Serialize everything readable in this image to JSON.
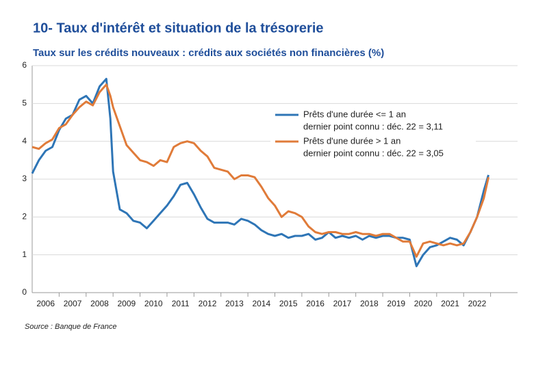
{
  "chart_data": {
    "type": "line",
    "title": "10- Taux d'intérêt et situation de la trésorerie",
    "subtitle": "Taux sur les crédits nouveaux : crédits aux sociétés non financières (%)",
    "source": "Source : Banque de France",
    "x": [
      2006.0,
      2006.25,
      2006.5,
      2006.75,
      2007.0,
      2007.25,
      2007.5,
      2007.75,
      2008.0,
      2008.25,
      2008.5,
      2008.75,
      2008.9,
      2009.0,
      2009.25,
      2009.5,
      2009.75,
      2010.0,
      2010.25,
      2010.5,
      2010.75,
      2011.0,
      2011.25,
      2011.5,
      2011.75,
      2012.0,
      2012.25,
      2012.5,
      2012.75,
      2013.0,
      2013.25,
      2013.5,
      2013.75,
      2014.0,
      2014.25,
      2014.5,
      2014.75,
      2015.0,
      2015.25,
      2015.5,
      2015.75,
      2016.0,
      2016.25,
      2016.5,
      2016.75,
      2017.0,
      2017.25,
      2017.5,
      2017.75,
      2018.0,
      2018.25,
      2018.5,
      2018.75,
      2019.0,
      2019.25,
      2019.5,
      2019.75,
      2020.0,
      2020.25,
      2020.5,
      2020.75,
      2021.0,
      2021.25,
      2021.5,
      2021.75,
      2022.0,
      2022.25,
      2022.5,
      2022.75,
      2022.92
    ],
    "series": [
      {
        "name": "Prêts d'une durée <= 1 an",
        "note": "dernier point connu : déc. 22 = 3,11",
        "color": "#2e75b6",
        "values": [
          3.15,
          3.5,
          3.75,
          3.85,
          4.3,
          4.6,
          4.7,
          5.1,
          5.2,
          5.0,
          5.45,
          5.65,
          4.6,
          3.2,
          2.2,
          2.1,
          1.9,
          1.85,
          1.7,
          1.9,
          2.1,
          2.3,
          2.55,
          2.85,
          2.9,
          2.6,
          2.25,
          1.95,
          1.85,
          1.85,
          1.85,
          1.8,
          1.95,
          1.9,
          1.8,
          1.65,
          1.55,
          1.5,
          1.55,
          1.45,
          1.5,
          1.5,
          1.55,
          1.4,
          1.45,
          1.6,
          1.45,
          1.5,
          1.45,
          1.5,
          1.4,
          1.5,
          1.45,
          1.5,
          1.5,
          1.45,
          1.45,
          1.4,
          0.7,
          1.0,
          1.2,
          1.25,
          1.35,
          1.45,
          1.4,
          1.25,
          1.6,
          2.0,
          2.7,
          3.11
        ]
      },
      {
        "name": "Prêts d'une durée > 1 an",
        "note": "dernier point connu : déc. 22 = 3,05",
        "color": "#e07b39",
        "values": [
          3.85,
          3.8,
          3.95,
          4.05,
          4.35,
          4.45,
          4.7,
          4.9,
          5.05,
          4.95,
          5.3,
          5.5,
          5.2,
          4.9,
          4.4,
          3.9,
          3.7,
          3.5,
          3.45,
          3.35,
          3.5,
          3.45,
          3.85,
          3.95,
          4.0,
          3.95,
          3.75,
          3.6,
          3.3,
          3.25,
          3.2,
          3.0,
          3.1,
          3.1,
          3.05,
          2.8,
          2.5,
          2.3,
          2.0,
          2.15,
          2.1,
          2.0,
          1.75,
          1.6,
          1.55,
          1.6,
          1.6,
          1.55,
          1.55,
          1.6,
          1.55,
          1.55,
          1.5,
          1.55,
          1.55,
          1.45,
          1.35,
          1.35,
          0.95,
          1.3,
          1.35,
          1.3,
          1.25,
          1.3,
          1.25,
          1.3,
          1.6,
          2.0,
          2.5,
          3.05
        ]
      }
    ],
    "xlim": [
      2006,
      2024
    ],
    "xticks": [
      {
        "value": 2006.5,
        "label": "2006"
      },
      {
        "value": 2007.5,
        "label": "2007"
      },
      {
        "value": 2008.5,
        "label": "2008"
      },
      {
        "value": 2009.5,
        "label": "2009"
      },
      {
        "value": 2010.5,
        "label": "2010"
      },
      {
        "value": 2011.5,
        "label": "2011"
      },
      {
        "value": 2012.5,
        "label": "2012"
      },
      {
        "value": 2013.5,
        "label": "2013"
      },
      {
        "value": 2014.5,
        "label": "2014"
      },
      {
        "value": 2015.5,
        "label": "2015"
      },
      {
        "value": 2016.5,
        "label": "2016"
      },
      {
        "value": 2017.5,
        "label": "2017"
      },
      {
        "value": 2018.5,
        "label": "2018"
      },
      {
        "value": 2019.5,
        "label": "2019"
      },
      {
        "value": 2020.5,
        "label": "2020"
      },
      {
        "value": 2021.5,
        "label": "2021"
      },
      {
        "value": 2022.5,
        "label": "2022"
      }
    ],
    "ylim": [
      0,
      6
    ],
    "yticks": [
      0,
      1,
      2,
      3,
      4,
      5,
      6
    ],
    "grid": true
  }
}
